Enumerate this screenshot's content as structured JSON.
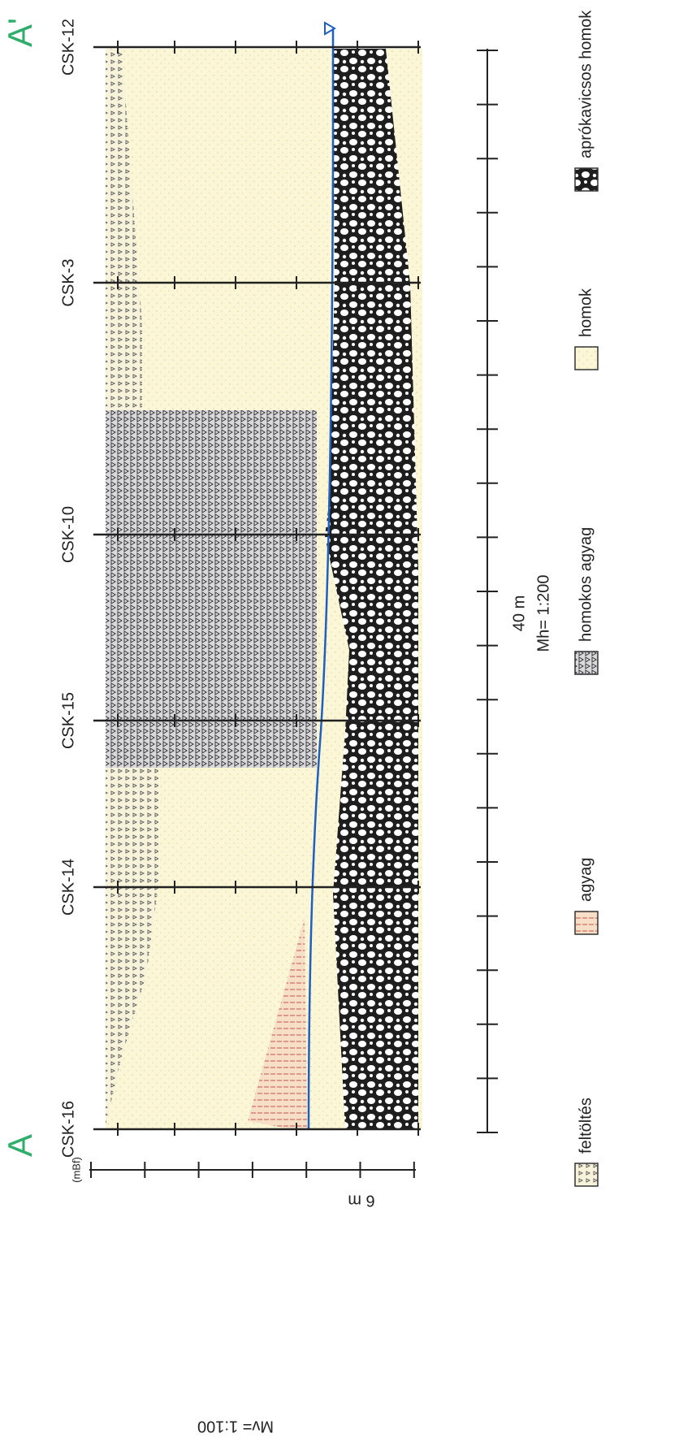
{
  "section": {
    "start": "A",
    "end": "A'"
  },
  "boreholes": [
    "CSK-16",
    "CSK-14",
    "CSK-15",
    "CSK-10",
    "CSK-3",
    "CSK-12"
  ],
  "vertical_scale": {
    "unit": "(mBf)",
    "length": "6 m",
    "ratio": "Mv= 1:100"
  },
  "horizontal_scale": {
    "length": "40 m",
    "ratio": "Mh= 1:200"
  },
  "legend": [
    "feltöltés",
    "agyag",
    "homokos agyag",
    "homok",
    "aprókavicsos homok"
  ]
}
